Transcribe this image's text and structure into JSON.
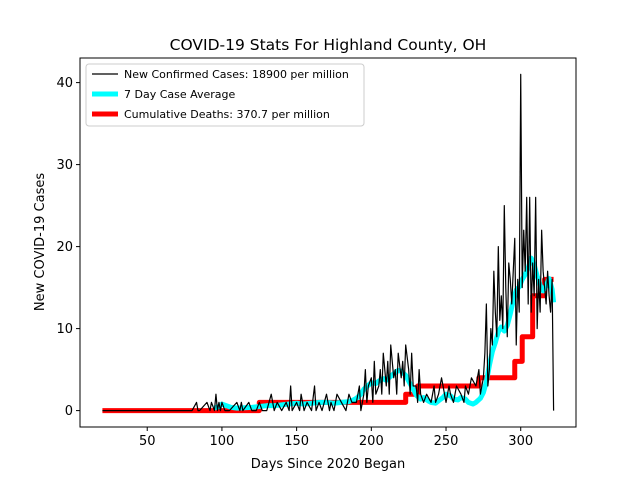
{
  "chart_data": {
    "type": "line",
    "title": "COVID-19 Stats For Highland County, OH",
    "xlabel": "Days Since 2020 Began",
    "ylabel": "New COVID-19 Cases",
    "xlim": [
      5,
      337
    ],
    "ylim": [
      -2,
      43
    ],
    "xticks": [
      50,
      100,
      150,
      200,
      250,
      300
    ],
    "yticks": [
      0,
      10,
      20,
      30,
      40
    ],
    "grid": false,
    "legend_position": "top-left",
    "series": [
      {
        "name": "New Confirmed Cases: 18900 per million",
        "color": "#000000",
        "x": [
          20,
          30,
          40,
          50,
          60,
          70,
          80,
          83,
          84,
          85,
          90,
          92,
          93,
          95,
          96,
          97,
          98,
          99,
          100,
          102,
          105,
          110,
          112,
          113,
          114,
          118,
          120,
          123,
          125,
          127,
          130,
          133,
          135,
          137,
          140,
          143,
          145,
          146,
          147,
          150,
          152,
          153,
          155,
          157,
          160,
          162,
          163,
          165,
          167,
          170,
          172,
          173,
          175,
          177,
          180,
          183,
          185,
          187,
          190,
          192,
          193,
          195,
          196,
          197,
          198,
          200,
          201,
          202,
          203,
          205,
          206,
          207,
          208,
          210,
          211,
          212,
          213,
          215,
          216,
          217,
          218,
          220,
          221,
          222,
          223,
          225,
          226,
          227,
          228,
          230,
          231,
          232,
          233,
          235,
          237,
          240,
          242,
          243,
          245,
          247,
          250,
          252,
          253,
          255,
          257,
          260,
          262,
          263,
          265,
          267,
          270,
          272,
          273,
          275,
          276,
          277,
          278,
          279,
          280,
          281,
          282,
          283,
          284,
          285,
          286,
          287,
          288,
          289,
          290,
          291,
          292,
          293,
          294,
          295,
          296,
          297,
          298,
          299,
          300,
          301,
          302,
          303,
          304,
          305,
          306,
          307,
          308,
          309,
          310,
          311,
          312,
          313,
          314,
          315,
          316,
          317,
          318,
          319,
          320,
          321,
          322
        ],
        "y": [
          0,
          0,
          0,
          0,
          0,
          0,
          0,
          1,
          0,
          0,
          1,
          0,
          1,
          0,
          2,
          0,
          1,
          0,
          1,
          0,
          0,
          1,
          0,
          1,
          0,
          1,
          0,
          0,
          1,
          0,
          0,
          2,
          0,
          1,
          0,
          1,
          0,
          3,
          0,
          1,
          0,
          2,
          0,
          1,
          0,
          3,
          0,
          1,
          0,
          2,
          0,
          1,
          0,
          2,
          1,
          0,
          2,
          1,
          1,
          3,
          0,
          2,
          5,
          1,
          3,
          4,
          1,
          6,
          2,
          3,
          5,
          2,
          7,
          3,
          6,
          2,
          8,
          4,
          5,
          2,
          7,
          4,
          6,
          3,
          8,
          5,
          2,
          7,
          3,
          3,
          1,
          5,
          2,
          1,
          2,
          1,
          3,
          1,
          2,
          4,
          1,
          3,
          2,
          1,
          3,
          2,
          1,
          3,
          2,
          4,
          3,
          5,
          2,
          4,
          7,
          13,
          3,
          5,
          10,
          8,
          17,
          12,
          9,
          20,
          11,
          14,
          10,
          25,
          15,
          9,
          18,
          16,
          13,
          17,
          21,
          8,
          16,
          12,
          41,
          15,
          22,
          17,
          26,
          13,
          26,
          12,
          18,
          14,
          26,
          10,
          16,
          12,
          22,
          17,
          15,
          13,
          17,
          14,
          12,
          16,
          0
        ]
      },
      {
        "name": "7 Day Case Average",
        "color": "#00ffff",
        "x": [
          95,
          98,
          100,
          103,
          106,
          110,
          120,
          125,
          130,
          135,
          140,
          145,
          150,
          155,
          160,
          165,
          170,
          175,
          180,
          185,
          188,
          190,
          193,
          195,
          198,
          200,
          203,
          205,
          208,
          210,
          213,
          215,
          218,
          220,
          223,
          225,
          228,
          230,
          233,
          235,
          238,
          240,
          243,
          245,
          248,
          250,
          253,
          255,
          258,
          260,
          263,
          265,
          268,
          270,
          273,
          275,
          277,
          279,
          281,
          283,
          285,
          287,
          289,
          291,
          293,
          295,
          297,
          299,
          301,
          303,
          305,
          307,
          309,
          311,
          313,
          315,
          317,
          319,
          321,
          322
        ],
        "y": [
          0.3,
          0.5,
          0.8,
          0.6,
          0.4,
          0.3,
          0.4,
          0.5,
          0.6,
          0.6,
          0.7,
          0.8,
          0.9,
          0.8,
          0.9,
          1.0,
          1.0,
          0.9,
          1.0,
          1.1,
          1.3,
          1.5,
          2.0,
          2.6,
          3.1,
          3.4,
          3.3,
          3.6,
          3.9,
          3.7,
          4.2,
          4.5,
          4.9,
          4.8,
          4.3,
          3.6,
          2.6,
          1.9,
          1.4,
          1.6,
          1.2,
          1.0,
          0.9,
          1.2,
          1.6,
          2.0,
          1.8,
          1.4,
          1.3,
          1.6,
          1.4,
          1.0,
          0.8,
          1.0,
          1.5,
          2.2,
          3.5,
          5.5,
          7.2,
          8.3,
          9.6,
          10.2,
          9.7,
          10.4,
          11.8,
          13.4,
          14.7,
          15.1,
          16.0,
          16.6,
          17.4,
          18.6,
          17.8,
          16.4,
          15.3,
          14.6,
          15.2,
          16.1,
          14.8,
          13.2
        ]
      },
      {
        "name": "Cumulative Deaths: 370.7 per million",
        "color": "#ff0000",
        "step": true,
        "x": [
          20,
          124,
          125,
          222,
          223,
          230,
          231,
          271,
          272,
          295,
          296,
          300,
          301,
          307,
          308,
          315,
          316,
          322
        ],
        "y": [
          0,
          0,
          1,
          1,
          2,
          2,
          3,
          3,
          4,
          4,
          6,
          6,
          9,
          9,
          14,
          14,
          16,
          16
        ]
      }
    ]
  }
}
